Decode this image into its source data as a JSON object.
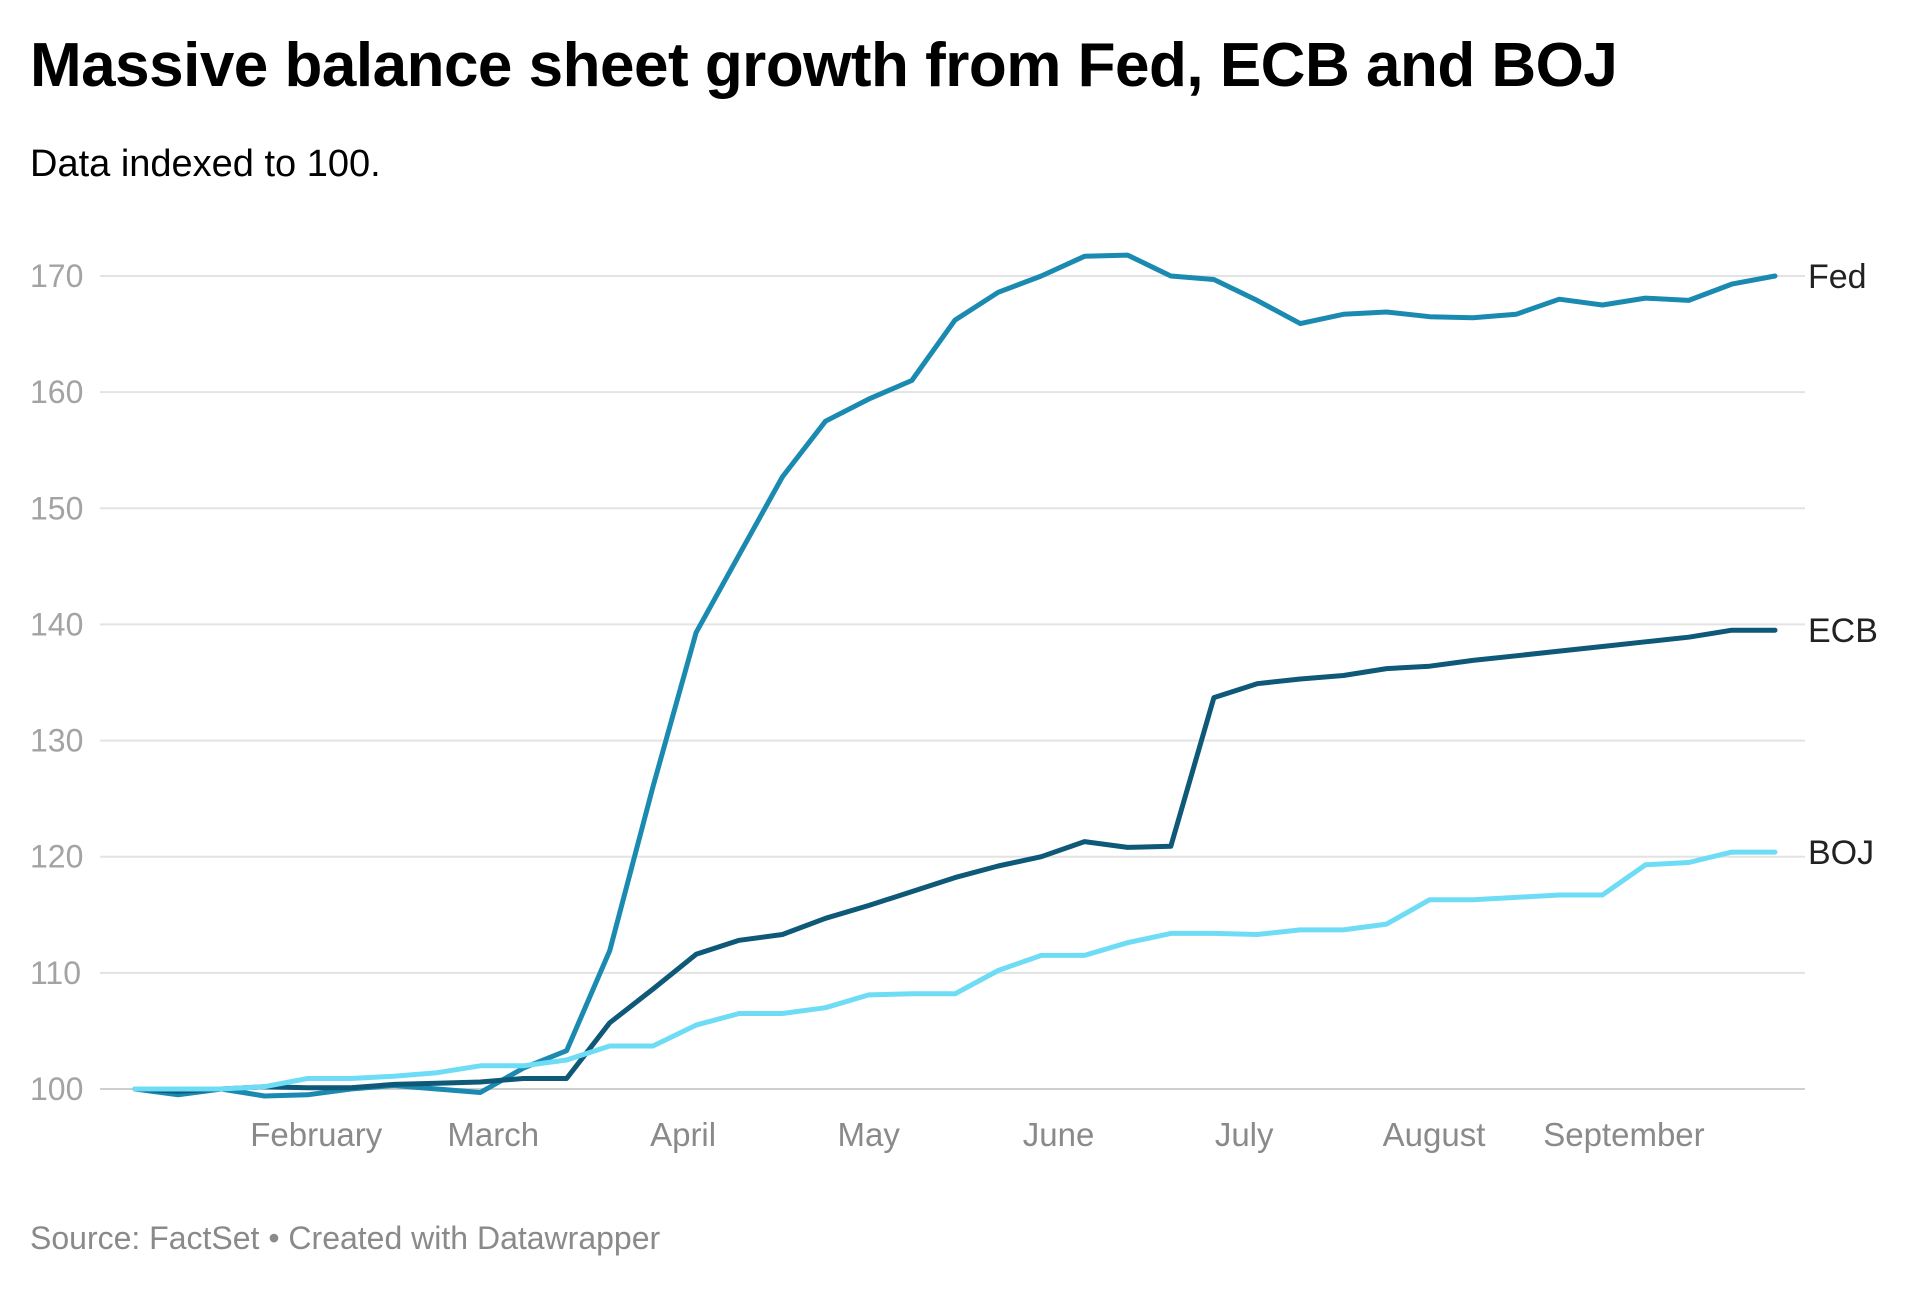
{
  "title": "Massive balance sheet growth from Fed, ECB and BOJ",
  "subtitle": "Data indexed to 100.",
  "footer": {
    "source": "Source: FactSet",
    "separator": "•",
    "credit": "Created with Datawrapper"
  },
  "chart_data": {
    "type": "line",
    "title": "Massive balance sheet growth from Fed, ECB and BOJ",
    "subtitle": "Data indexed to 100.",
    "y_ticks": [
      100,
      110,
      120,
      130,
      140,
      150,
      160,
      170
    ],
    "ylim": [
      100,
      172
    ],
    "x_month_labels": [
      {
        "label": "February",
        "x": 4.2
      },
      {
        "label": "March",
        "x": 8.3
      },
      {
        "label": "April",
        "x": 12.7
      },
      {
        "label": "May",
        "x": 17
      },
      {
        "label": "June",
        "x": 21.4
      },
      {
        "label": "July",
        "x": 25.7
      },
      {
        "label": "August",
        "x": 30.1
      },
      {
        "label": "September",
        "x": 34.5
      }
    ],
    "xlim": [
      0,
      38
    ],
    "grid": true,
    "legend": "direct labels at line ends",
    "series": [
      {
        "name": "Fed",
        "color": "#1b8ab0",
        "values": [
          100,
          99.5,
          100,
          99.4,
          99.5,
          100,
          100.3,
          100,
          99.7,
          101.8,
          103.3,
          111.9,
          126,
          139.3,
          146,
          152.7,
          157.5,
          159.4,
          161,
          166.2,
          168.6,
          170,
          171.7,
          171.8,
          170,
          169.7,
          167.9,
          165.9,
          166.7,
          166.9,
          166.5,
          166.4,
          166.7,
          168,
          167.5,
          168.1,
          167.9,
          169.3,
          170
        ]
      },
      {
        "name": "ECB",
        "color": "#0e5878",
        "values": [
          100,
          99.8,
          100,
          100.2,
          100.1,
          100.1,
          100.4,
          100.5,
          100.6,
          100.9,
          100.9,
          105.7,
          108.6,
          111.6,
          112.8,
          113.3,
          114.7,
          115.8,
          117,
          118.2,
          119.2,
          120,
          121.3,
          120.8,
          120.9,
          133.7,
          134.9,
          135.3,
          135.6,
          136.2,
          136.4,
          136.9,
          137.3,
          137.7,
          138.1,
          138.5,
          138.9,
          139.5,
          139.5
        ]
      },
      {
        "name": "BOJ",
        "color": "#6fdcf5",
        "values": [
          100,
          100,
          100,
          100.2,
          100.9,
          100.9,
          101.1,
          101.4,
          102,
          102,
          102.5,
          103.7,
          103.7,
          105.5,
          106.5,
          106.5,
          107,
          108.1,
          108.2,
          108.2,
          110.2,
          111.5,
          111.5,
          112.6,
          113.4,
          113.4,
          113.3,
          113.7,
          113.7,
          114.2,
          116.3,
          116.3,
          116.5,
          116.7,
          116.7,
          119.3,
          119.5,
          120.4,
          120.4
        ]
      }
    ]
  }
}
